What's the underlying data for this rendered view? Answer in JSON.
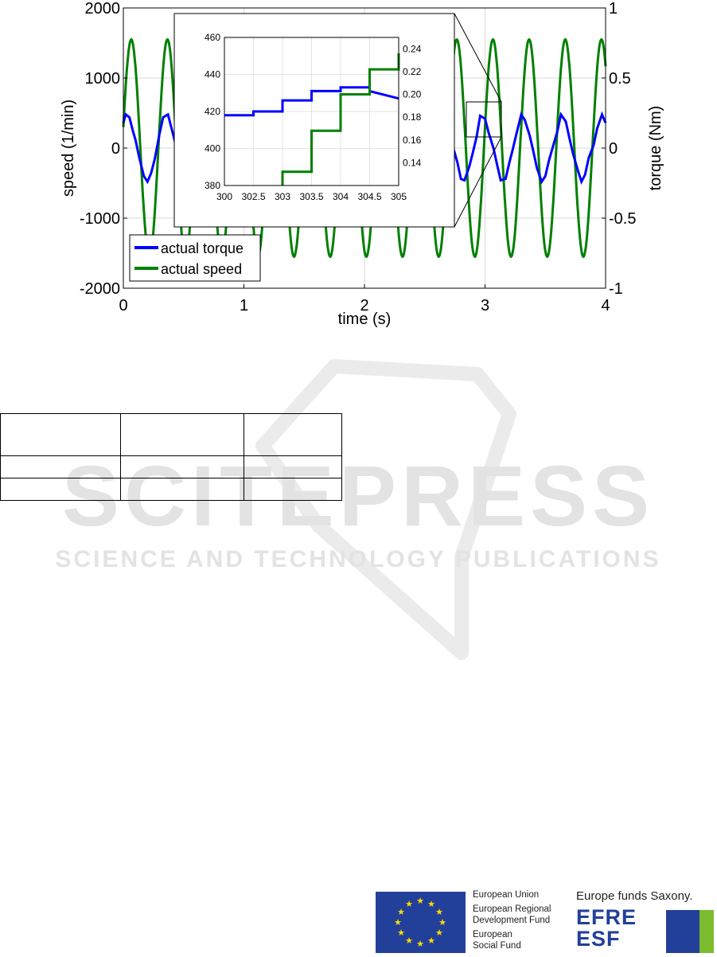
{
  "chart_data": {
    "type": "line",
    "main": {
      "xlabel": "time (s)",
      "ylabel_left": "speed (1/min)",
      "ylabel_right": "torque (Nm)",
      "xlim": [
        0,
        4
      ],
      "ylim_left": [
        -2000,
        2000
      ],
      "ylim_right": [
        -1,
        1
      ],
      "xticks": [
        0,
        1,
        2,
        3,
        4
      ],
      "yticks_left": [
        -2000,
        -1000,
        0,
        1000,
        2000
      ],
      "yticks_right": [
        -1,
        -0.5,
        0,
        0.5,
        1
      ],
      "legend_position": "bottom-left",
      "grid": true,
      "series": [
        {
          "name": "actual torque",
          "axis": "right",
          "color": "#0000ff",
          "x": [
            0,
            0.02,
            0.05,
            0.08,
            0.1,
            0.13,
            0.17,
            0.2,
            0.23,
            0.26,
            0.3,
            0.33,
            0.37,
            0.4,
            0.43,
            0.47,
            0.5,
            0.53,
            0.56,
            0.6,
            0.63,
            0.67,
            0.7,
            0.73,
            0.77,
            0.8,
            0.83,
            0.86,
            0.9,
            0.93,
            0.97,
            1.0,
            1.03,
            1.07,
            1.1,
            1.13,
            1.16,
            1.2,
            1.23,
            1.27,
            1.3,
            1.33,
            1.37,
            1.4,
            1.43,
            1.46,
            1.5,
            1.53,
            1.57,
            1.6,
            1.63,
            1.67,
            1.7,
            1.73,
            1.76,
            1.8,
            1.83,
            1.87,
            1.9,
            1.93,
            1.97,
            2.0,
            2.03,
            2.06,
            2.1,
            2.13,
            2.17,
            2.2,
            2.23,
            2.27,
            2.3,
            2.33,
            2.36,
            2.4,
            2.43,
            2.47,
            2.5,
            2.53,
            2.57,
            2.6,
            2.63,
            2.66,
            2.7,
            2.73,
            2.77,
            2.8,
            2.83,
            2.87,
            2.9,
            2.93,
            2.96,
            3.0,
            3.03,
            3.07,
            3.1,
            3.13,
            3.17,
            3.2,
            3.23,
            3.26,
            3.3,
            3.33,
            3.37,
            3.4,
            3.43,
            3.47,
            3.5,
            3.53,
            3.56,
            3.6,
            3.63,
            3.67,
            3.7,
            3.73,
            3.77,
            3.8,
            3.83,
            3.86,
            3.9,
            3.93,
            3.97,
            4.0
          ],
          "y": [
            0.18,
            0.24,
            0.22,
            0.12,
            0.06,
            -0.06,
            -0.2,
            -0.24,
            -0.18,
            -0.08,
            0.1,
            0.22,
            0.24,
            0.14,
            0.04,
            -0.08,
            -0.22,
            -0.24,
            -0.16,
            -0.06,
            0.12,
            0.22,
            0.22,
            0.12,
            0.02,
            -0.1,
            -0.22,
            -0.22,
            -0.14,
            -0.04,
            0.14,
            0.23,
            0.21,
            0.1,
            0.0,
            -0.12,
            -0.23,
            -0.21,
            -0.12,
            -0.02,
            0.16,
            0.24,
            0.2,
            0.08,
            -0.02,
            -0.14,
            -0.24,
            -0.2,
            -0.1,
            0.0,
            0.18,
            0.24,
            0.18,
            0.06,
            -0.04,
            -0.16,
            -0.24,
            -0.18,
            -0.08,
            0.02,
            0.2,
            0.24,
            0.16,
            0.04,
            -0.06,
            -0.18,
            -0.24,
            -0.16,
            -0.06,
            0.04,
            0.21,
            0.23,
            0.15,
            0.03,
            -0.08,
            -0.2,
            -0.24,
            -0.15,
            -0.05,
            0.06,
            0.22,
            0.22,
            0.13,
            0.02,
            -0.1,
            -0.22,
            -0.23,
            -0.13,
            -0.03,
            0.08,
            0.23,
            0.21,
            0.11,
            0.0,
            -0.12,
            -0.23,
            -0.22,
            -0.11,
            -0.01,
            0.1,
            0.24,
            0.2,
            0.09,
            -0.02,
            -0.14,
            -0.24,
            -0.2,
            -0.09,
            0.0,
            0.12,
            0.24,
            0.19,
            0.07,
            -0.04,
            -0.16,
            -0.24,
            -0.19,
            -0.07,
            0.02,
            0.14,
            0.24,
            0.18
          ]
        },
        {
          "name": "actual speed",
          "axis": "left",
          "color": "#008000",
          "amplitude": 1550,
          "period": 0.3,
          "phase_note_x0": 0,
          "y0": 300
        }
      ]
    },
    "inset": {
      "xlim": [
        300,
        305
      ],
      "ylim_left": [
        380,
        460
      ],
      "ylim_right": [
        0.12,
        0.25
      ],
      "xticks": [
        300,
        302.5,
        303,
        303.5,
        304,
        304.5,
        305
      ],
      "xtick_labels": [
        "300",
        "302.5",
        "303",
        "303.5",
        "304",
        "304.5",
        "305"
      ],
      "yticks_left": [
        380,
        400,
        420,
        440,
        460
      ],
      "yticks_right": [
        0.14,
        0.16,
        0.18,
        0.2,
        0.22,
        0.24
      ],
      "ytick_labels_right": [
        "0.14",
        "0.16",
        "0.18",
        "0.20",
        "0.22",
        "0.24"
      ],
      "series": [
        {
          "name": "actual torque",
          "axis": "left",
          "color": "#0000ff",
          "steps_x": [
            300,
            302.5,
            302.5,
            303,
            303,
            303.5,
            303.5,
            304,
            304,
            304.5,
            304.5,
            305
          ],
          "steps_y": [
            418,
            418,
            420,
            420,
            426,
            426,
            431,
            431,
            433,
            433,
            431,
            427
          ]
        },
        {
          "name": "actual speed",
          "axis": "right",
          "color": "#008000",
          "steps_x": [
            303,
            303,
            303.5,
            303.5,
            304,
            304,
            304.5,
            304.5,
            305,
            305
          ],
          "steps_y": [
            0.12,
            0.132,
            0.132,
            0.168,
            0.168,
            0.2,
            0.2,
            0.222,
            0.222,
            0.236
          ]
        }
      ]
    }
  },
  "watermark": {
    "title": "SCITEPRESS",
    "subtitle": "SCIENCE AND TECHNOLOGY PUBLICATIONS"
  },
  "footer": {
    "eu_line1": "European Union",
    "eu_line2": "European Regional",
    "eu_line3": "Development Fund",
    "eu_line4": "European",
    "eu_line5": "Social Fund",
    "saxony": "Europe funds Saxony.",
    "efre": "EFRE",
    "esf": "ESF"
  }
}
